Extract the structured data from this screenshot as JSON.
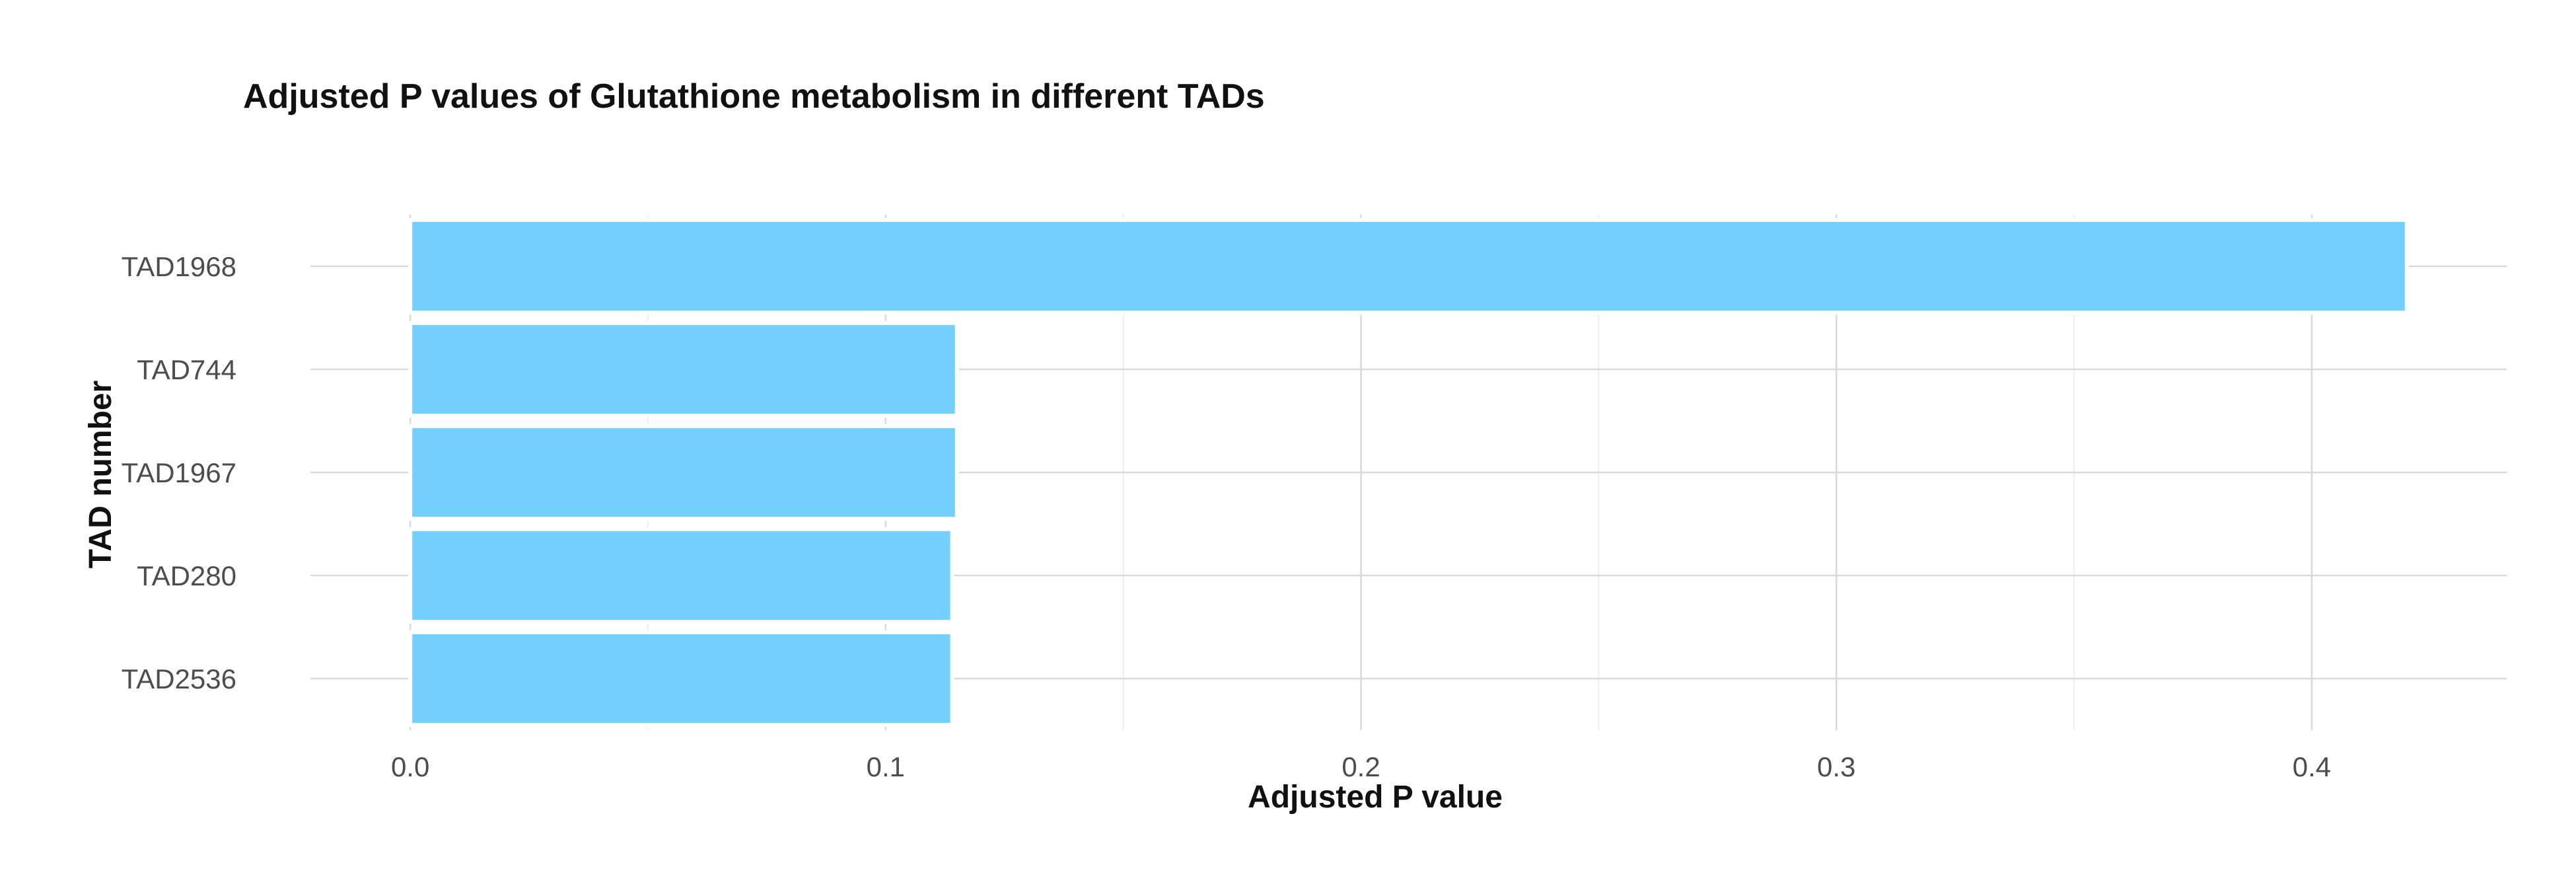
{
  "chart_data": {
    "type": "bar",
    "orientation": "horizontal",
    "title": "Adjusted P values of Glutathione metabolism in different TADs",
    "xlabel": "Adjusted P value",
    "ylabel": "TAD number",
    "categories": [
      "TAD1968",
      "TAD744",
      "TAD1967",
      "TAD280",
      "TAD2536"
    ],
    "values": [
      0.42,
      0.115,
      0.115,
      0.114,
      0.114
    ],
    "xlim": [
      -0.021,
      0.441
    ],
    "xticks": [
      0.0,
      0.1,
      0.2,
      0.3,
      0.4
    ],
    "xtick_labels": [
      "0.0",
      "0.1",
      "0.2",
      "0.3",
      "0.4"
    ],
    "grid": true,
    "legend": "none",
    "colors": {
      "bar_fill": "#75CFFC",
      "bar_outline": "#ffffff",
      "grid_major": "#d9d9d9",
      "grid_minor": "#ebebeb"
    }
  }
}
